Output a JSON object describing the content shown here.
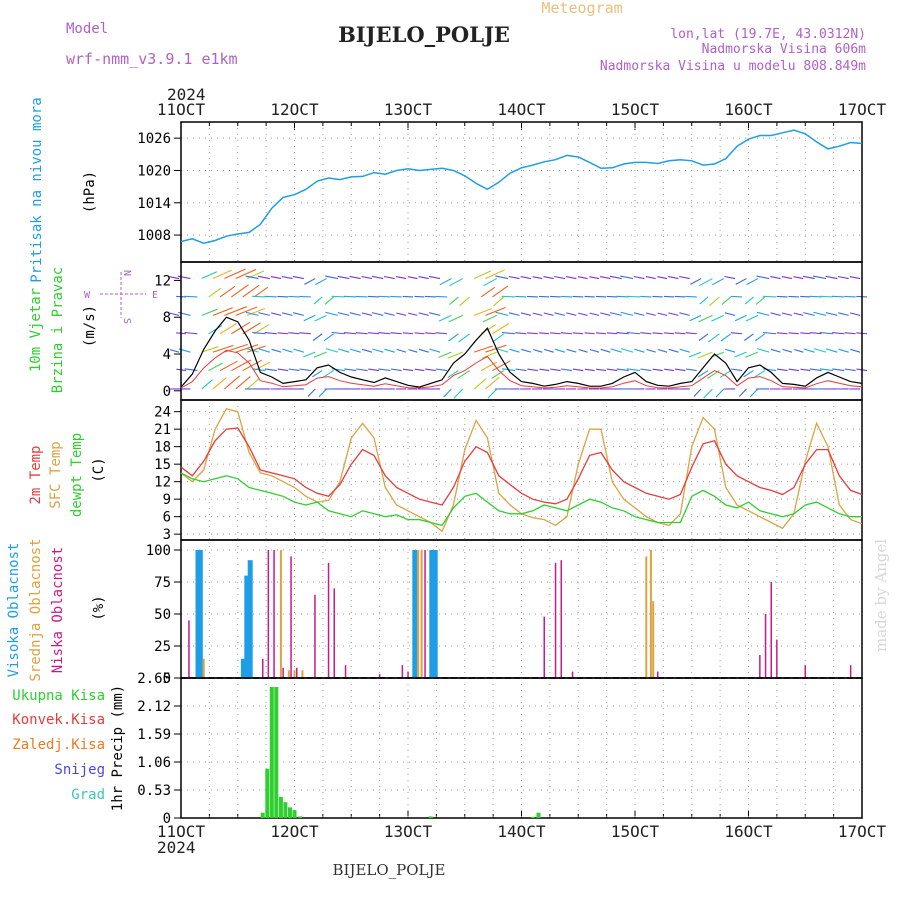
{
  "header": {
    "model_label": "Model",
    "model_name": "wrf-nmm_v3.9.1 e1km",
    "title": "BIJELO_POLJE",
    "product": "Meteogram",
    "lonlat": "lon,lat (19.7E, 43.0312N)",
    "altitude": "Nadmorska Visina 606m",
    "model_altitude": "Nadmorska Visina u modelu 808.849m",
    "year": "2024",
    "footer_station": "BIJELO_POLJE",
    "credit": "made by Angel"
  },
  "time_axis": {
    "ticks": [
      "11OCT",
      "12OCT",
      "13OCT",
      "14OCT",
      "15OCT",
      "16OCT",
      "17OCT"
    ]
  },
  "colors": {
    "pressure": "#1e9ee6",
    "temp2m": "#e83c3c",
    "sfc_temp": "#d9a441",
    "dewpt": "#2ecf2e",
    "high_cloud": "#1e9ee6",
    "mid_cloud": "#e0a040",
    "low_cloud": "#c81a8c",
    "total_precip": "#2ecf2e",
    "conv_precip": "#e83c3c",
    "frozen_precip": "#f07820",
    "snow": "#4848e0",
    "graupel": "#3cc8b4"
  },
  "chart_data": [
    {
      "type": "line",
      "panel": "pressure",
      "labels": [
        "Pritisak na nivou mora",
        "(hPa)"
      ],
      "ylim": [
        1003,
        1029
      ],
      "yticks": [
        1008,
        1014,
        1020,
        1026
      ],
      "series": [
        {
          "name": "Pritisak na nivou mora",
          "x": [
            0,
            0.1,
            0.2,
            0.3,
            0.4,
            0.5,
            0.6,
            0.7,
            0.8,
            0.9,
            1.0,
            1.1,
            1.2,
            1.3,
            1.4,
            1.5,
            1.6,
            1.7,
            1.8,
            1.9,
            2.0,
            2.1,
            2.2,
            2.3,
            2.4,
            2.5,
            2.6,
            2.7,
            2.8,
            2.9,
            3.0,
            3.1,
            3.2,
            3.3,
            3.4,
            3.5,
            3.6,
            3.7,
            3.8,
            3.9,
            4.0,
            4.1,
            4.2,
            4.3,
            4.4,
            4.5,
            4.6,
            4.7,
            4.8,
            4.9,
            5.0,
            5.1,
            5.2,
            5.3,
            5.4,
            5.5,
            5.6,
            5.7,
            5.8,
            5.9,
            6.0
          ],
          "y": [
            1006.8,
            1007.3,
            1006.5,
            1007.0,
            1007.8,
            1008.2,
            1008.5,
            1010.0,
            1013.0,
            1015.0,
            1015.5,
            1016.5,
            1018.0,
            1018.6,
            1018.3,
            1018.8,
            1018.9,
            1019.6,
            1019.3,
            1020.0,
            1020.3,
            1020.0,
            1020.2,
            1020.4,
            1020.0,
            1019.0,
            1017.6,
            1016.5,
            1017.8,
            1019.5,
            1020.5,
            1021.0,
            1021.6,
            1022.0,
            1022.8,
            1022.5,
            1021.5,
            1020.4,
            1020.5,
            1021.2,
            1021.5,
            1021.5,
            1021.3,
            1021.8,
            1022.0,
            1021.8,
            1021.0,
            1021.2,
            1022.2,
            1024.5,
            1025.8,
            1026.5,
            1026.5,
            1027.0,
            1027.5,
            1026.8,
            1025.3,
            1024.0,
            1024.5,
            1025.2,
            1025.0
          ]
        }
      ]
    },
    {
      "type": "line",
      "panel": "wind",
      "labels": [
        "10m Vjetar",
        "Brzina i Pravac",
        "(m/s)"
      ],
      "compass": {
        "n": "N",
        "w": "W",
        "e": "E",
        "s": "S"
      },
      "ylim": [
        -1,
        14
      ],
      "yticks": [
        0,
        4,
        8,
        12
      ],
      "series": [
        {
          "name": "10m Vjetar",
          "x": [
            0,
            0.1,
            0.2,
            0.3,
            0.4,
            0.5,
            0.6,
            0.7,
            0.8,
            0.9,
            1.0,
            1.1,
            1.2,
            1.3,
            1.4,
            1.5,
            1.6,
            1.7,
            1.8,
            1.9,
            2.0,
            2.1,
            2.2,
            2.3,
            2.4,
            2.5,
            2.6,
            2.7,
            2.8,
            2.9,
            3.0,
            3.1,
            3.2,
            3.3,
            3.4,
            3.5,
            3.6,
            3.7,
            3.8,
            3.9,
            4.0,
            4.1,
            4.2,
            4.3,
            4.4,
            4.5,
            4.6,
            4.7,
            4.8,
            4.9,
            5.0,
            5.1,
            5.2,
            5.3,
            5.4,
            5.5,
            5.6,
            5.7,
            5.8,
            5.9,
            6.0
          ],
          "y": [
            0.4,
            1.8,
            4.5,
            6.5,
            8.0,
            7.5,
            5.5,
            2.0,
            1.5,
            0.8,
            1.0,
            1.2,
            2.5,
            2.8,
            2.0,
            1.5,
            1.2,
            0.9,
            1.4,
            1.0,
            0.6,
            0.4,
            0.8,
            1.2,
            3.0,
            4.0,
            5.5,
            6.8,
            4.0,
            2.0,
            1.0,
            0.8,
            0.5,
            0.7,
            1.0,
            0.8,
            0.5,
            0.5,
            0.8,
            1.5,
            2.0,
            1.0,
            0.6,
            0.5,
            0.8,
            1.0,
            2.5,
            4.0,
            3.0,
            1.0,
            2.5,
            2.8,
            2.0,
            0.8,
            0.7,
            0.5,
            1.4,
            2.0,
            1.5,
            1.0,
            0.8
          ]
        }
      ]
    },
    {
      "type": "line",
      "panel": "temperature",
      "labels": [
        "2m Temp",
        "SFC Temp",
        "dewpt Temp",
        "(C)"
      ],
      "ylim": [
        2,
        26
      ],
      "yticks": [
        3,
        6,
        9,
        12,
        15,
        18,
        21,
        24
      ],
      "series": [
        {
          "name": "2m Temp",
          "x": [
            0,
            0.1,
            0.2,
            0.3,
            0.4,
            0.5,
            0.6,
            0.7,
            0.8,
            0.9,
            1.0,
            1.1,
            1.2,
            1.3,
            1.4,
            1.5,
            1.6,
            1.7,
            1.8,
            1.9,
            2.0,
            2.1,
            2.2,
            2.3,
            2.4,
            2.5,
            2.6,
            2.7,
            2.8,
            2.9,
            3.0,
            3.1,
            3.2,
            3.3,
            3.4,
            3.5,
            3.6,
            3.7,
            3.8,
            3.9,
            4.0,
            4.1,
            4.2,
            4.3,
            4.4,
            4.5,
            4.6,
            4.7,
            4.8,
            4.9,
            5.0,
            5.1,
            5.2,
            5.3,
            5.4,
            5.5,
            5.6,
            5.7,
            5.8,
            5.9,
            6.0
          ],
          "y": [
            14.5,
            13.0,
            15.5,
            19.0,
            21.0,
            21.2,
            18.0,
            14.0,
            13.5,
            13.0,
            12.5,
            11.0,
            10.0,
            9.5,
            11.5,
            15.0,
            17.5,
            16.5,
            13.0,
            11.0,
            10.0,
            9.0,
            8.5,
            8.0,
            11.0,
            15.5,
            18.0,
            17.0,
            13.0,
            11.5,
            10.0,
            9.0,
            8.5,
            8.2,
            9.0,
            12.5,
            16.5,
            17.0,
            14.0,
            12.0,
            11.0,
            10.0,
            9.5,
            9.0,
            9.8,
            14.5,
            18.5,
            19.0,
            15.0,
            13.0,
            12.0,
            11.0,
            10.5,
            9.8,
            11.0,
            15.0,
            17.5,
            17.5,
            13.0,
            10.5,
            9.8
          ]
        },
        {
          "name": "SFC Temp",
          "x": [
            0,
            0.1,
            0.2,
            0.3,
            0.4,
            0.5,
            0.6,
            0.7,
            0.8,
            0.9,
            1.0,
            1.1,
            1.2,
            1.3,
            1.4,
            1.5,
            1.6,
            1.7,
            1.8,
            1.9,
            2.0,
            2.1,
            2.2,
            2.3,
            2.4,
            2.5,
            2.6,
            2.7,
            2.8,
            2.9,
            3.0,
            3.1,
            3.2,
            3.3,
            3.4,
            3.5,
            3.6,
            3.7,
            3.8,
            3.9,
            4.0,
            4.1,
            4.2,
            4.3,
            4.4,
            4.5,
            4.6,
            4.7,
            4.8,
            4.9,
            5.0,
            5.1,
            5.2,
            5.3,
            5.4,
            5.5,
            5.6,
            5.7,
            5.8,
            5.9,
            6.0
          ],
          "y": [
            13.5,
            12.0,
            14.0,
            21.0,
            24.5,
            24.0,
            17.0,
            13.5,
            13.0,
            12.0,
            11.0,
            9.5,
            8.5,
            8.8,
            12.0,
            19.5,
            22.0,
            19.5,
            11.0,
            8.0,
            7.0,
            6.0,
            5.0,
            3.5,
            8.0,
            17.5,
            22.5,
            19.5,
            10.0,
            8.0,
            6.5,
            5.8,
            5.5,
            4.5,
            6.0,
            15.0,
            21.0,
            21.0,
            12.0,
            9.0,
            7.5,
            6.0,
            5.0,
            4.5,
            6.5,
            18.0,
            23.0,
            21.0,
            11.0,
            8.0,
            7.0,
            6.0,
            5.0,
            4.0,
            6.5,
            15.5,
            22.0,
            18.0,
            8.0,
            5.5,
            4.8
          ]
        },
        {
          "name": "dewpt Temp",
          "x": [
            0,
            0.1,
            0.2,
            0.3,
            0.4,
            0.5,
            0.6,
            0.7,
            0.8,
            0.9,
            1.0,
            1.1,
            1.2,
            1.3,
            1.4,
            1.5,
            1.6,
            1.7,
            1.8,
            1.9,
            2.0,
            2.1,
            2.2,
            2.3,
            2.4,
            2.5,
            2.6,
            2.7,
            2.8,
            2.9,
            3.0,
            3.1,
            3.2,
            3.3,
            3.4,
            3.5,
            3.6,
            3.7,
            3.8,
            3.9,
            4.0,
            4.1,
            4.2,
            4.3,
            4.4,
            4.5,
            4.6,
            4.7,
            4.8,
            4.9,
            5.0,
            5.1,
            5.2,
            5.3,
            5.4,
            5.5,
            5.6,
            5.7,
            5.8,
            5.9,
            6.0
          ],
          "y": [
            13.5,
            12.5,
            12.0,
            12.5,
            13.0,
            12.5,
            11.0,
            10.5,
            10.0,
            9.5,
            8.5,
            8.0,
            8.5,
            7.0,
            6.5,
            6.0,
            7.0,
            6.5,
            6.0,
            6.3,
            5.5,
            5.5,
            5.0,
            4.5,
            7.5,
            9.5,
            10.0,
            8.5,
            7.0,
            6.5,
            6.5,
            7.0,
            8.0,
            7.5,
            7.0,
            8.0,
            9.0,
            8.5,
            7.5,
            7.0,
            6.0,
            5.5,
            5.0,
            5.0,
            5.0,
            9.5,
            10.5,
            9.5,
            8.0,
            7.5,
            8.5,
            7.0,
            6.5,
            6.0,
            6.5,
            8.0,
            8.5,
            7.5,
            6.5,
            6.0,
            6.0
          ]
        }
      ]
    },
    {
      "type": "bar",
      "panel": "cloud",
      "labels": [
        "Visoka Oblacnost",
        "Srednja Oblacnost",
        "Niska Oblacnost",
        "(%)"
      ],
      "ylim": [
        0,
        100
      ],
      "yticks": [
        0,
        25,
        50,
        75,
        100
      ],
      "series": [
        {
          "name": "Visoka Oblacnost",
          "x": [
            0.15,
            0.17,
            0.55,
            0.58,
            0.61,
            2.06,
            2.21,
            2.24
          ],
          "values": [
            100,
            100,
            15,
            80,
            92,
            100,
            100,
            100
          ]
        },
        {
          "name": "Srednja Oblacnost",
          "x": [
            0.2,
            0.88,
            0.95,
            1.0,
            1.07,
            2.09,
            2.12,
            4.1,
            4.14,
            4.16
          ],
          "values": [
            15,
            100,
            6,
            6,
            6,
            100,
            100,
            95,
            100,
            60
          ]
        },
        {
          "name": "Niska Oblacnost",
          "x": [
            0.07,
            0.72,
            0.77,
            0.82,
            0.9,
            0.97,
            1.02,
            1.18,
            1.3,
            1.35,
            1.45,
            1.75,
            1.95,
            2.0,
            2.15,
            3.2,
            3.3,
            3.35,
            3.45,
            4.2,
            5.1,
            5.15,
            5.2,
            5.25,
            5.5,
            5.9
          ],
          "values": [
            45,
            15,
            100,
            100,
            8,
            95,
            8,
            65,
            90,
            70,
            10,
            3,
            10,
            5,
            100,
            48,
            90,
            92,
            5,
            5,
            18,
            50,
            75,
            30,
            10,
            10
          ]
        }
      ]
    },
    {
      "type": "bar",
      "panel": "precipitation",
      "labels": [
        "Ukupna Kisa",
        "Konvek.Kisa",
        "Zaledj.Kisa",
        "Snijeg",
        "Grad",
        "1hr Precip (mm)"
      ],
      "ylim": [
        0,
        2.65
      ],
      "yticks": [
        "0",
        "0.53",
        "1.06",
        "1.59",
        "2.12",
        "2.65"
      ],
      "series": [
        {
          "name": "Ukupna Kisa",
          "x": [
            0.72,
            0.76,
            0.8,
            0.84,
            0.88,
            0.92,
            0.96,
            1.0,
            1.05,
            2.2,
            3.1,
            3.15
          ],
          "values": [
            0.1,
            0.93,
            2.48,
            2.48,
            0.4,
            0.3,
            0.2,
            0.15,
            0.03,
            0.03,
            0.02,
            0.1
          ]
        }
      ]
    }
  ]
}
